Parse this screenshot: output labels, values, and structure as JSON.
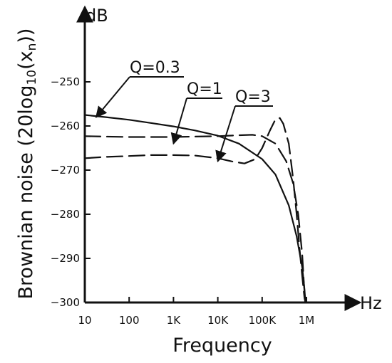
{
  "chart_data": {
    "type": "line",
    "xlabel": "Frequency",
    "ylabel": "Brownian noise (20log10(xn))",
    "ylabel_parts": {
      "main": "Brownian noise (20log",
      "sub1": "10",
      "mid": "(x",
      "sub2": "n",
      "end": "))"
    },
    "x_unit": "Hz",
    "y_unit": "dB",
    "x_scale": "log",
    "xlim": [
      10,
      1000000
    ],
    "ylim": [
      -300,
      -240
    ],
    "x_ticks": [
      {
        "value": 10,
        "label": "10"
      },
      {
        "value": 100,
        "label": "100"
      },
      {
        "value": 1000,
        "label": "1K"
      },
      {
        "value": 10000,
        "label": "10K"
      },
      {
        "value": 100000,
        "label": "100K"
      },
      {
        "value": 1000000,
        "label": "1M"
      }
    ],
    "y_ticks": [
      {
        "value": -250,
        "label": "−250"
      },
      {
        "value": -260,
        "label": "−260"
      },
      {
        "value": -270,
        "label": "−270"
      },
      {
        "value": -280,
        "label": "−280"
      },
      {
        "value": -290,
        "label": "−290"
      },
      {
        "value": -300,
        "label": "−300"
      }
    ],
    "grid": false,
    "series": [
      {
        "name": "Q=0.3",
        "style": "solid",
        "x": [
          10,
          30,
          100,
          300,
          1000,
          3000,
          10000,
          30000,
          100000,
          200000,
          400000,
          600000,
          800000,
          900000,
          950000
        ],
        "y": [
          -257.5,
          -258,
          -258.6,
          -259.3,
          -260.1,
          -261,
          -262.2,
          -264,
          -267.5,
          -271,
          -278,
          -285,
          -292,
          -297,
          -300
        ]
      },
      {
        "name": "Q=1",
        "style": "long-dash",
        "x": [
          10,
          30,
          100,
          300,
          1000,
          3000,
          10000,
          30000,
          60000,
          100000,
          200000,
          350000,
          500000,
          650000,
          800000,
          880000,
          940000
        ],
        "y": [
          -262.3,
          -262.4,
          -262.5,
          -262.5,
          -262.5,
          -262.4,
          -262.3,
          -262.1,
          -262.0,
          -262.3,
          -264,
          -268,
          -273,
          -280,
          -289,
          -296,
          -300
        ]
      },
      {
        "name": "Q=3",
        "style": "long-dash",
        "x": [
          10,
          30,
          100,
          300,
          1000,
          3000,
          10000,
          20000,
          40000,
          70000,
          100000,
          150000,
          200000,
          250000,
          300000,
          400000,
          500000,
          600000,
          700000,
          800000,
          900000,
          950000
        ],
        "y": [
          -267.3,
          -267,
          -266.8,
          -266.6,
          -266.6,
          -266.7,
          -267.3,
          -268,
          -268.5,
          -267.5,
          -265,
          -261,
          -258.5,
          -258.2,
          -259.5,
          -264,
          -272,
          -280,
          -288,
          -294,
          -299,
          -300
        ]
      }
    ],
    "annotations": [
      {
        "label": "Q=0.3",
        "series": "Q=0.3",
        "target": [
          18,
          -258
        ]
      },
      {
        "label": "Q=1",
        "series": "Q=1",
        "target": [
          1000,
          -264
        ]
      },
      {
        "label": "Q=3",
        "series": "Q=3",
        "target": [
          10000,
          -268
        ]
      }
    ]
  }
}
